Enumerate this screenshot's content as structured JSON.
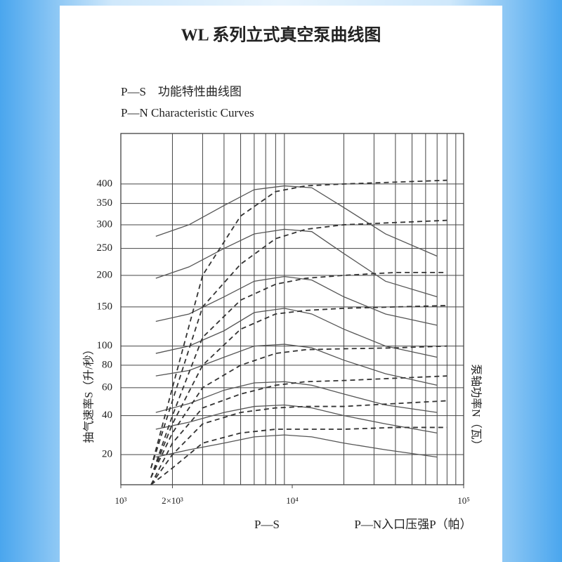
{
  "chart_data": {
    "type": "line",
    "title": "WL 系列立式真空泵曲线图",
    "subtitle": "P—S　功能特性曲线图",
    "subtitle2": "P—N Characteristic Curves",
    "y_label": "抽气速率S（升/秒）",
    "y2_label": "泵轴功率N（瓦）",
    "x_label_left": "P—S",
    "x_label": "P—N入口压强P（帕）",
    "log_x": true,
    "grid": true,
    "xlim": [
      1000,
      100000
    ],
    "xticks": [
      {
        "value": 1000,
        "label": "10³"
      },
      {
        "value": 2000,
        "label": "2×10³"
      },
      {
        "value": 10000,
        "label": "10⁴"
      },
      {
        "value": 100000,
        "label": "10⁵"
      }
    ],
    "ylim": [
      10,
      550
    ],
    "yticks": [
      20,
      40,
      60,
      80,
      100,
      150,
      200,
      250,
      300,
      350,
      400
    ],
    "series": [
      {
        "style": "solid",
        "color": "#555555",
        "x": [
          1600,
          2500,
          4000,
          6000,
          9000,
          13000,
          20000,
          35000,
          70000
        ],
        "values": [
          275,
          300,
          345,
          385,
          395,
          390,
          340,
          280,
          235
        ]
      },
      {
        "style": "solid",
        "color": "#555555",
        "x": [
          1600,
          2500,
          4000,
          6000,
          9000,
          13000,
          20000,
          35000,
          70000
        ],
        "values": [
          195,
          215,
          250,
          280,
          290,
          285,
          240,
          190,
          165
        ]
      },
      {
        "style": "solid",
        "color": "#555555",
        "x": [
          1600,
          2500,
          4000,
          6000,
          9000,
          13000,
          20000,
          35000,
          70000
        ],
        "values": [
          130,
          140,
          165,
          190,
          198,
          192,
          165,
          140,
          125
        ]
      },
      {
        "style": "solid",
        "color": "#555555",
        "x": [
          1600,
          2500,
          4000,
          6000,
          9000,
          13000,
          20000,
          35000,
          70000
        ],
        "values": [
          92,
          100,
          118,
          142,
          148,
          140,
          120,
          100,
          88
        ]
      },
      {
        "style": "solid",
        "color": "#555555",
        "x": [
          1600,
          2500,
          4000,
          6000,
          9000,
          13000,
          20000,
          35000,
          70000
        ],
        "values": [
          70,
          75,
          88,
          100,
          102,
          98,
          85,
          72,
          62
        ]
      },
      {
        "style": "solid",
        "color": "#555555",
        "x": [
          1600,
          2500,
          4000,
          6000,
          9000,
          13000,
          20000,
          35000,
          70000
        ],
        "values": [
          42,
          48,
          58,
          64,
          65,
          62,
          55,
          47,
          42
        ]
      },
      {
        "style": "solid",
        "color": "#555555",
        "x": [
          1600,
          2500,
          4000,
          6000,
          9000,
          13000,
          20000,
          35000,
          70000
        ],
        "values": [
          32,
          36,
          42,
          46,
          47,
          45,
          40,
          35,
          30
        ]
      },
      {
        "style": "solid",
        "color": "#555555",
        "x": [
          1600,
          2500,
          4000,
          6000,
          9000,
          13000,
          20000,
          35000,
          70000
        ],
        "values": [
          19,
          22,
          25,
          28,
          29,
          28,
          25,
          22,
          19
        ]
      },
      {
        "style": "dashed",
        "color": "#333333",
        "x": [
          1500,
          2000,
          3000,
          5000,
          8000,
          12000,
          20000,
          40000,
          80000
        ],
        "values": [
          15,
          60,
          200,
          320,
          380,
          395,
          400,
          405,
          410
        ]
      },
      {
        "style": "dashed",
        "color": "#333333",
        "x": [
          1500,
          2000,
          3000,
          5000,
          8000,
          12000,
          20000,
          40000,
          80000
        ],
        "values": [
          15,
          50,
          150,
          220,
          270,
          290,
          300,
          305,
          310
        ]
      },
      {
        "style": "dashed",
        "color": "#333333",
        "x": [
          1500,
          2000,
          3000,
          5000,
          8000,
          12000,
          20000,
          40000,
          80000
        ],
        "values": [
          12,
          40,
          110,
          160,
          185,
          195,
          200,
          205,
          205
        ]
      },
      {
        "style": "dashed",
        "color": "#333333",
        "x": [
          1500,
          2000,
          3000,
          5000,
          8000,
          12000,
          20000,
          40000,
          80000
        ],
        "values": [
          12,
          35,
          80,
          120,
          140,
          145,
          148,
          150,
          152
        ]
      },
      {
        "style": "dashed",
        "color": "#333333",
        "x": [
          1500,
          2000,
          3000,
          5000,
          8000,
          12000,
          20000,
          40000,
          80000
        ],
        "values": [
          12,
          30,
          60,
          80,
          92,
          96,
          97,
          98,
          100
        ]
      },
      {
        "style": "dashed",
        "color": "#333333",
        "x": [
          1500,
          2000,
          3000,
          5000,
          8000,
          12000,
          20000,
          40000,
          80000
        ],
        "values": [
          10,
          25,
          45,
          55,
          62,
          65,
          66,
          68,
          70
        ]
      },
      {
        "style": "dashed",
        "color": "#333333",
        "x": [
          1500,
          2000,
          3000,
          5000,
          8000,
          12000,
          20000,
          40000,
          80000
        ],
        "values": [
          10,
          20,
          35,
          42,
          45,
          46,
          46,
          48,
          50
        ]
      },
      {
        "style": "dashed",
        "color": "#333333",
        "x": [
          1500,
          2000,
          3000,
          5000,
          8000,
          12000,
          20000,
          40000,
          80000
        ],
        "values": [
          10,
          15,
          25,
          30,
          32,
          32,
          32,
          33,
          33
        ]
      }
    ]
  }
}
